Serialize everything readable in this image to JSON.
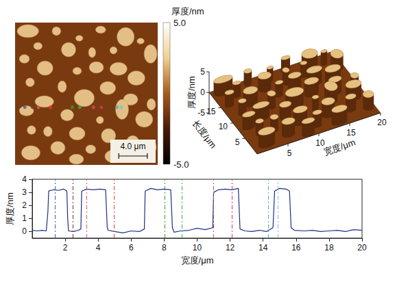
{
  "chart_data": [
    {
      "type": "height_map",
      "xlim": [
        0,
        20
      ],
      "ylim": [
        0,
        20
      ],
      "tick_labels": false,
      "islands": [
        [
          1.8,
          1.2,
          1.5,
          0.9
        ],
        [
          5.8,
          1.2,
          0.6,
          0.6
        ],
        [
          12.0,
          1.0,
          0.7,
          0.5
        ],
        [
          9.0,
          2.2,
          0.5,
          0.4
        ],
        [
          15.5,
          2.0,
          1.2,
          1.3
        ],
        [
          17.6,
          2.6,
          0.5,
          0.4
        ],
        [
          3.2,
          3.3,
          0.6,
          0.5
        ],
        [
          7.5,
          3.8,
          1.0,
          1.0
        ],
        [
          10.8,
          4.2,
          0.5,
          0.7
        ],
        [
          13.8,
          3.9,
          0.5,
          0.5
        ],
        [
          19.0,
          4.4,
          0.9,
          1.3
        ],
        [
          1.3,
          5.1,
          0.7,
          0.6
        ],
        [
          4.2,
          6.4,
          1.1,
          1.0
        ],
        [
          11.4,
          6.3,
          1.0,
          0.8
        ],
        [
          14.5,
          6.5,
          1.2,
          0.9
        ],
        [
          8.7,
          6.8,
          0.6,
          0.5
        ],
        [
          17.0,
          7.8,
          1.2,
          1.0
        ],
        [
          2.1,
          8.4,
          0.6,
          0.6
        ],
        [
          6.6,
          9.0,
          0.6,
          0.8
        ],
        [
          13.0,
          9.2,
          1.1,
          0.9
        ],
        [
          9.7,
          10.6,
          1.4,
          1.2
        ],
        [
          16.2,
          10.8,
          1.0,
          0.8
        ],
        [
          4.1,
          11.1,
          1.3,
          0.8
        ],
        [
          19.1,
          11.5,
          0.6,
          0.8
        ],
        [
          1.6,
          12.4,
          1.0,
          0.7
        ],
        [
          15.0,
          12.2,
          0.9,
          1.4
        ],
        [
          7.3,
          13.0,
          0.9,
          0.8
        ],
        [
          11.9,
          13.7,
          0.5,
          0.5
        ],
        [
          18.1,
          13.6,
          1.2,
          1.1
        ],
        [
          2.3,
          15.1,
          0.6,
          0.6
        ],
        [
          4.6,
          15.3,
          0.6,
          0.7
        ],
        [
          8.7,
          15.6,
          1.1,
          0.9
        ],
        [
          13.1,
          15.9,
          1.0,
          1.0
        ],
        [
          16.5,
          16.6,
          0.8,
          0.7
        ],
        [
          6.0,
          17.6,
          1.0,
          0.9
        ],
        [
          10.6,
          17.8,
          0.7,
          0.6
        ],
        [
          19.0,
          17.5,
          0.8,
          1.0
        ],
        [
          2.2,
          18.3,
          1.3,
          1.0
        ],
        [
          13.8,
          18.8,
          1.2,
          0.9
        ],
        [
          8.6,
          19.2,
          1.0,
          0.7
        ]
      ],
      "island_height": 3.2,
      "profile_y": 11.9,
      "scale_bar": {
        "length": 4,
        "label": "4.0 μm"
      },
      "colorbar": {
        "label": "厚度/nm",
        "range": [
          -5,
          5
        ],
        "ticks": [
          {
            "value": 5,
            "label": "5.0"
          },
          {
            "value": -5,
            "label": "-5.0"
          }
        ]
      }
    },
    {
      "type": "surface3d",
      "xlabel": "宽度/μm",
      "ylabel": "长度/μm",
      "zlabel": "厚度/nm",
      "xlim": [
        0,
        20
      ],
      "ylim": [
        0,
        20
      ],
      "zlim": [
        -5,
        5
      ],
      "xticks": [
        5,
        10,
        15,
        20
      ],
      "yticks": [
        5,
        10,
        15
      ],
      "zticks": [
        5,
        0,
        -5
      ]
    },
    {
      "type": "line",
      "xlabel": "宽度/μm",
      "ylabel": "厚度/nm",
      "color": "#1c2f80",
      "xlim": [
        0,
        20
      ],
      "ylim": [
        -0.5,
        4
      ],
      "xticks": [
        2,
        4,
        6,
        8,
        10,
        12,
        14,
        16,
        18,
        20
      ],
      "yticks": [
        0,
        1,
        2,
        3,
        4
      ],
      "grid": false,
      "x": [
        0,
        0.3,
        0.6,
        0.85,
        0.95,
        1.0,
        1.3,
        1.6,
        1.9,
        2.1,
        2.15,
        2.2,
        2.5,
        2.8,
        2.95,
        3.0,
        3.3,
        3.7,
        4.1,
        4.45,
        4.55,
        4.6,
        5.0,
        5.5,
        6.0,
        6.5,
        6.8,
        6.85,
        7.2,
        7.6,
        8.0,
        8.4,
        8.5,
        8.6,
        9.0,
        9.5,
        10.0,
        10.5,
        10.95,
        11.0,
        11.3,
        11.7,
        12.1,
        12.5,
        12.6,
        12.9,
        13.3,
        13.8,
        14.2,
        14.6,
        14.7,
        15.0,
        15.4,
        15.6,
        15.7,
        15.9,
        16.5,
        17.0,
        17.5,
        18.0,
        18.5,
        19.0,
        19.5,
        20.0
      ],
      "values": [
        0.1,
        0.05,
        0.1,
        0.05,
        1.5,
        3.1,
        3.2,
        3.15,
        3.25,
        3.1,
        1.0,
        0.05,
        0.0,
        0.1,
        0.2,
        3.1,
        3.25,
        3.2,
        3.25,
        3.2,
        0.3,
        0.1,
        0.0,
        -0.1,
        0.05,
        0.0,
        0.2,
        3.1,
        3.3,
        3.2,
        3.25,
        3.2,
        0.3,
        -0.05,
        0.05,
        0.1,
        0.25,
        0.15,
        0.3,
        3.0,
        3.2,
        3.25,
        3.2,
        3.3,
        0.2,
        0.05,
        0.0,
        0.1,
        0.0,
        0.3,
        3.1,
        3.3,
        3.25,
        3.1,
        0.3,
        0.1,
        0.05,
        0.1,
        0.0,
        0.05,
        0.1,
        0.0,
        0.15,
        0.1
      ],
      "markers": [
        {
          "x": 1.37,
          "color": "#3b5fa8"
        },
        {
          "x": 2.45,
          "color": "#6b3b2a"
        },
        {
          "x": 3.28,
          "color": "#d65a6a"
        },
        {
          "x": 4.95,
          "color": "#e0403a"
        },
        {
          "x": 8.02,
          "color": "#2ca02c"
        },
        {
          "x": 9.06,
          "color": "#3cb043"
        },
        {
          "x": 11.0,
          "color": "#c8506a"
        },
        {
          "x": 12.1,
          "color": "#d6336c"
        },
        {
          "x": 14.3,
          "color": "#4fb0b8"
        },
        {
          "x": 14.9,
          "color": "#6fc7d6"
        }
      ]
    }
  ]
}
